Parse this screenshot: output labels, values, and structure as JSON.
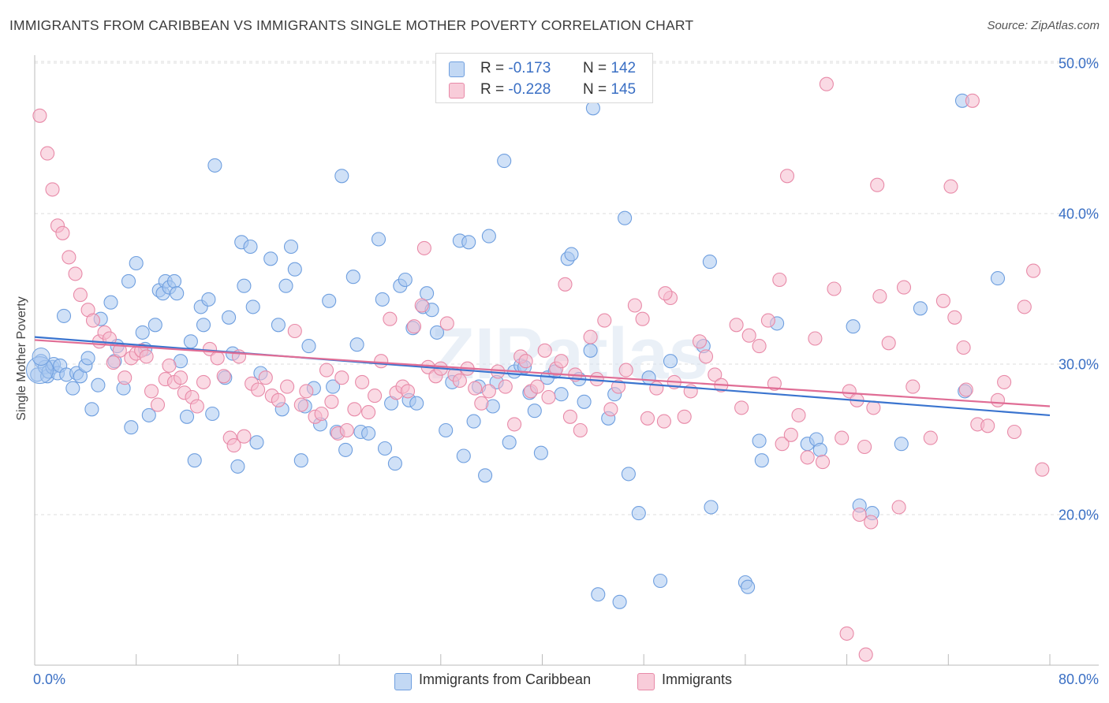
{
  "title": "IMMIGRANTS FROM CARIBBEAN VS IMMIGRANTS SINGLE MOTHER POVERTY CORRELATION CHART",
  "source": "Source: ZipAtlas.com",
  "watermark": "ZIPatlas",
  "legend_stats": [
    {
      "r_label": "R =",
      "r_value": "-0.173",
      "n_label": "N =",
      "n_value": "142",
      "color": "#a9c8f0",
      "border": "#6f9fdf"
    },
    {
      "r_label": "R =",
      "r_value": "-0.228",
      "n_label": "N =",
      "n_value": "145",
      "color": "#f6bccd",
      "border": "#e88aa8"
    }
  ],
  "chart_data": {
    "type": "scatter",
    "title": "IMMIGRANTS FROM CARIBBEAN VS IMMIGRANTS SINGLE MOTHER POVERTY CORRELATION CHART",
    "xlabel": "",
    "ylabel": "Single Mother Poverty",
    "xlim": [
      0,
      80
    ],
    "ylim": [
      10,
      52
    ],
    "x_tick_labels": [
      "0.0%",
      "80.0%"
    ],
    "y_ticks": [
      20,
      30,
      40,
      50
    ],
    "y_tick_labels": [
      "20.0%",
      "30.0%",
      "40.0%",
      "50.0%"
    ],
    "grid": "horizontal dashed",
    "legend_placement": "bottom-center",
    "series": [
      {
        "name": "Immigrants from Caribbean",
        "color": "#a9c8f0",
        "edge": "#6f9fdf",
        "trend_color": "#3a74cf",
        "trend": [
          [
            0,
            31.8
          ],
          [
            80,
            26.6
          ]
        ],
        "points": [
          [
            0.2,
            29.3
          ],
          [
            0.5,
            30.2
          ],
          [
            0.8,
            29.8
          ],
          [
            1.0,
            29.2
          ],
          [
            1.1,
            29.5
          ],
          [
            1.4,
            29.8
          ],
          [
            1.5,
            30.0
          ],
          [
            1.8,
            29.4
          ],
          [
            2.0,
            29.9
          ],
          [
            2.3,
            33.2
          ],
          [
            2.5,
            29.3
          ],
          [
            3.0,
            28.4
          ],
          [
            3.3,
            29.4
          ],
          [
            3.6,
            29.2
          ],
          [
            4.0,
            29.9
          ],
          [
            4.2,
            30.4
          ],
          [
            4.5,
            27.0
          ],
          [
            5.0,
            28.6
          ],
          [
            5.2,
            33.0
          ],
          [
            6.0,
            34.1
          ],
          [
            6.3,
            30.2
          ],
          [
            6.5,
            31.2
          ],
          [
            7.0,
            28.4
          ],
          [
            7.4,
            35.5
          ],
          [
            7.6,
            25.8
          ],
          [
            8.0,
            36.7
          ],
          [
            8.5,
            32.1
          ],
          [
            8.7,
            31.0
          ],
          [
            9.0,
            26.6
          ],
          [
            9.5,
            32.6
          ],
          [
            9.8,
            34.9
          ],
          [
            10.1,
            34.7
          ],
          [
            10.3,
            35.5
          ],
          [
            10.6,
            35.1
          ],
          [
            11.0,
            35.5
          ],
          [
            11.2,
            34.7
          ],
          [
            11.5,
            30.2
          ],
          [
            12.0,
            26.5
          ],
          [
            12.3,
            31.5
          ],
          [
            12.6,
            23.6
          ],
          [
            13.1,
            33.8
          ],
          [
            13.3,
            32.6
          ],
          [
            13.7,
            34.3
          ],
          [
            14.0,
            26.7
          ],
          [
            14.2,
            43.2
          ],
          [
            15.0,
            29.1
          ],
          [
            15.3,
            33.1
          ],
          [
            15.6,
            30.7
          ],
          [
            16.0,
            23.2
          ],
          [
            16.3,
            38.1
          ],
          [
            16.5,
            35.2
          ],
          [
            17.0,
            37.8
          ],
          [
            17.2,
            33.8
          ],
          [
            17.5,
            24.8
          ],
          [
            17.8,
            29.4
          ],
          [
            18.6,
            37.0
          ],
          [
            19.2,
            32.6
          ],
          [
            19.5,
            27.0
          ],
          [
            19.8,
            35.2
          ],
          [
            20.2,
            37.8
          ],
          [
            20.5,
            36.3
          ],
          [
            21.0,
            23.6
          ],
          [
            21.3,
            27.2
          ],
          [
            21.6,
            31.2
          ],
          [
            22.0,
            28.4
          ],
          [
            22.5,
            26.0
          ],
          [
            23.2,
            34.2
          ],
          [
            23.5,
            28.5
          ],
          [
            23.8,
            25.5
          ],
          [
            24.2,
            42.5
          ],
          [
            24.5,
            24.3
          ],
          [
            25.1,
            35.8
          ],
          [
            25.4,
            31.3
          ],
          [
            25.7,
            25.5
          ],
          [
            26.3,
            25.4
          ],
          [
            27.1,
            38.3
          ],
          [
            27.4,
            34.3
          ],
          [
            27.6,
            24.4
          ],
          [
            28.1,
            27.4
          ],
          [
            28.4,
            23.4
          ],
          [
            28.8,
            35.2
          ],
          [
            29.2,
            35.6
          ],
          [
            29.5,
            27.6
          ],
          [
            29.8,
            32.4
          ],
          [
            30.1,
            27.4
          ],
          [
            30.6,
            33.8
          ],
          [
            30.9,
            34.7
          ],
          [
            31.3,
            33.6
          ],
          [
            31.7,
            32.1
          ],
          [
            32.4,
            25.6
          ],
          [
            32.9,
            28.8
          ],
          [
            33.5,
            38.2
          ],
          [
            33.8,
            23.9
          ],
          [
            34.2,
            38.1
          ],
          [
            34.6,
            26.2
          ],
          [
            35.0,
            28.5
          ],
          [
            35.5,
            22.6
          ],
          [
            35.8,
            38.5
          ],
          [
            36.1,
            27.2
          ],
          [
            36.4,
            28.8
          ],
          [
            37.0,
            43.5
          ],
          [
            37.4,
            24.8
          ],
          [
            37.8,
            29.5
          ],
          [
            38.3,
            29.9
          ],
          [
            38.6,
            29.8
          ],
          [
            39.0,
            28.1
          ],
          [
            39.4,
            26.9
          ],
          [
            39.9,
            24.1
          ],
          [
            40.4,
            29.1
          ],
          [
            41.0,
            29.5
          ],
          [
            41.5,
            28.0
          ],
          [
            42.0,
            37.0
          ],
          [
            42.3,
            37.3
          ],
          [
            42.9,
            29.0
          ],
          [
            43.3,
            27.5
          ],
          [
            43.8,
            30.9
          ],
          [
            44.0,
            47.0
          ],
          [
            44.4,
            14.7
          ],
          [
            45.2,
            26.4
          ],
          [
            45.7,
            28.0
          ],
          [
            46.1,
            14.2
          ],
          [
            46.5,
            39.7
          ],
          [
            46.8,
            22.7
          ],
          [
            47.6,
            20.1
          ],
          [
            48.4,
            29.1
          ],
          [
            49.3,
            15.6
          ],
          [
            50.1,
            30.2
          ],
          [
            52.7,
            31.2
          ],
          [
            53.2,
            36.8
          ],
          [
            53.3,
            20.5
          ],
          [
            56.0,
            15.5
          ],
          [
            56.2,
            15.2
          ],
          [
            57.1,
            24.9
          ],
          [
            57.3,
            23.6
          ],
          [
            58.5,
            32.7
          ],
          [
            60.9,
            24.7
          ],
          [
            61.6,
            25.0
          ],
          [
            61.9,
            24.3
          ],
          [
            64.5,
            32.5
          ],
          [
            65.0,
            20.6
          ],
          [
            66.0,
            20.1
          ],
          [
            68.3,
            24.7
          ],
          [
            69.8,
            33.7
          ],
          [
            73.1,
            47.5
          ],
          [
            73.3,
            28.2
          ],
          [
            75.9,
            35.7
          ]
        ]
      },
      {
        "name": "Immigrants",
        "color": "#f6bccd",
        "edge": "#e88aa8",
        "trend_color": "#e06d95",
        "trend": [
          [
            0,
            31.6
          ],
          [
            80,
            27.2
          ]
        ],
        "points": [
          [
            0.4,
            46.5
          ],
          [
            1.0,
            44.0
          ],
          [
            1.4,
            41.6
          ],
          [
            1.8,
            39.2
          ],
          [
            2.2,
            38.7
          ],
          [
            2.7,
            37.1
          ],
          [
            3.2,
            36.0
          ],
          [
            3.6,
            34.6
          ],
          [
            4.2,
            33.6
          ],
          [
            4.6,
            32.9
          ],
          [
            5.1,
            31.5
          ],
          [
            5.5,
            32.1
          ],
          [
            5.9,
            31.7
          ],
          [
            6.2,
            30.1
          ],
          [
            6.7,
            30.9
          ],
          [
            7.1,
            29.1
          ],
          [
            7.6,
            30.4
          ],
          [
            8.0,
            30.7
          ],
          [
            8.4,
            30.9
          ],
          [
            8.8,
            30.5
          ],
          [
            9.2,
            28.2
          ],
          [
            9.7,
            27.3
          ],
          [
            10.3,
            29.0
          ],
          [
            10.6,
            29.9
          ],
          [
            11.0,
            28.8
          ],
          [
            11.5,
            29.1
          ],
          [
            11.8,
            28.1
          ],
          [
            12.4,
            27.8
          ],
          [
            12.8,
            27.2
          ],
          [
            13.3,
            28.8
          ],
          [
            13.8,
            31.0
          ],
          [
            14.4,
            30.4
          ],
          [
            14.9,
            29.2
          ],
          [
            15.4,
            25.1
          ],
          [
            15.7,
            24.6
          ],
          [
            16.1,
            30.5
          ],
          [
            16.5,
            25.2
          ],
          [
            17.1,
            28.7
          ],
          [
            17.6,
            28.3
          ],
          [
            18.2,
            29.1
          ],
          [
            18.7,
            27.9
          ],
          [
            19.2,
            27.6
          ],
          [
            19.9,
            28.5
          ],
          [
            20.5,
            32.2
          ],
          [
            21.0,
            27.3
          ],
          [
            21.4,
            28.2
          ],
          [
            22.1,
            26.5
          ],
          [
            22.6,
            26.7
          ],
          [
            23.0,
            29.6
          ],
          [
            23.4,
            27.5
          ],
          [
            23.9,
            25.4
          ],
          [
            24.2,
            29.1
          ],
          [
            24.6,
            25.6
          ],
          [
            25.2,
            27.0
          ],
          [
            25.8,
            28.8
          ],
          [
            26.3,
            26.8
          ],
          [
            26.8,
            27.9
          ],
          [
            27.3,
            30.2
          ],
          [
            28.0,
            33.0
          ],
          [
            28.5,
            28.1
          ],
          [
            29.0,
            28.5
          ],
          [
            29.4,
            28.2
          ],
          [
            29.9,
            32.5
          ],
          [
            30.5,
            33.9
          ],
          [
            30.7,
            37.7
          ],
          [
            31.0,
            29.8
          ],
          [
            31.6,
            29.2
          ],
          [
            32.0,
            29.7
          ],
          [
            32.5,
            32.7
          ],
          [
            33.1,
            29.3
          ],
          [
            33.5,
            28.9
          ],
          [
            34.1,
            29.7
          ],
          [
            34.7,
            28.4
          ],
          [
            35.2,
            27.4
          ],
          [
            35.8,
            28.2
          ],
          [
            36.5,
            29.5
          ],
          [
            37.1,
            28.5
          ],
          [
            37.8,
            26.0
          ],
          [
            38.3,
            30.5
          ],
          [
            38.7,
            30.2
          ],
          [
            39.1,
            28.2
          ],
          [
            39.6,
            28.5
          ],
          [
            40.2,
            30.9
          ],
          [
            40.5,
            27.8
          ],
          [
            41.1,
            29.7
          ],
          [
            41.5,
            30.2
          ],
          [
            41.8,
            35.3
          ],
          [
            42.2,
            26.5
          ],
          [
            42.6,
            29.3
          ],
          [
            43.0,
            25.6
          ],
          [
            43.8,
            31.8
          ],
          [
            44.3,
            29.0
          ],
          [
            44.9,
            32.9
          ],
          [
            45.4,
            27.0
          ],
          [
            46.0,
            28.5
          ],
          [
            46.6,
            29.6
          ],
          [
            47.3,
            33.9
          ],
          [
            47.9,
            33.0
          ],
          [
            48.3,
            26.4
          ],
          [
            49.0,
            28.4
          ],
          [
            49.6,
            26.2
          ],
          [
            50.4,
            28.8
          ],
          [
            51.2,
            26.5
          ],
          [
            51.7,
            28.2
          ],
          [
            52.4,
            31.5
          ],
          [
            52.9,
            30.5
          ],
          [
            53.6,
            29.3
          ],
          [
            54.1,
            28.6
          ],
          [
            55.3,
            32.6
          ],
          [
            55.7,
            27.1
          ],
          [
            56.3,
            31.9
          ],
          [
            57.1,
            31.2
          ],
          [
            57.8,
            32.9
          ],
          [
            58.3,
            28.7
          ],
          [
            58.9,
            24.7
          ],
          [
            59.6,
            25.3
          ],
          [
            60.2,
            26.6
          ],
          [
            60.9,
            23.8
          ],
          [
            61.5,
            31.7
          ],
          [
            62.1,
            23.5
          ],
          [
            63.0,
            35.0
          ],
          [
            63.6,
            25.1
          ],
          [
            64.2,
            28.2
          ],
          [
            64.8,
            27.6
          ],
          [
            65.4,
            24.5
          ],
          [
            66.1,
            27.1
          ],
          [
            66.6,
            34.5
          ],
          [
            67.3,
            31.4
          ],
          [
            68.5,
            35.1
          ],
          [
            69.2,
            28.5
          ],
          [
            70.6,
            25.1
          ],
          [
            71.6,
            34.2
          ],
          [
            72.5,
            33.1
          ],
          [
            73.4,
            28.3
          ],
          [
            74.3,
            26.0
          ],
          [
            75.1,
            25.9
          ],
          [
            75.9,
            27.6
          ],
          [
            76.4,
            28.8
          ],
          [
            77.2,
            25.5
          ],
          [
            78.0,
            33.8
          ],
          [
            78.7,
            36.2
          ],
          [
            79.4,
            23.0
          ],
          [
            62.4,
            48.6
          ],
          [
            73.9,
            47.5
          ],
          [
            66.4,
            41.9
          ],
          [
            72.2,
            41.8
          ],
          [
            59.3,
            42.5
          ],
          [
            58.7,
            35.6
          ],
          [
            50.1,
            34.4
          ],
          [
            49.7,
            34.7
          ],
          [
            73.2,
            31.1
          ],
          [
            64.0,
            12.1
          ],
          [
            65.5,
            10.7
          ],
          [
            65.0,
            20.0
          ],
          [
            65.9,
            19.5
          ],
          [
            68.1,
            20.5
          ]
        ]
      }
    ]
  }
}
